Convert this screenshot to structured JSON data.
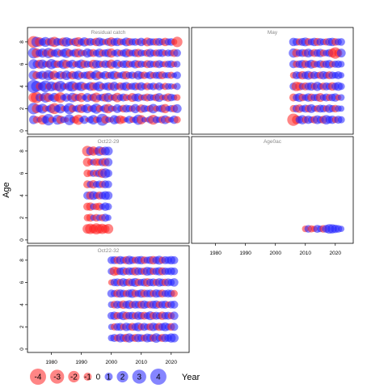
{
  "chart_data": {
    "type": "scatter",
    "subtype": "bubble-residuals",
    "xlabel": "Year",
    "ylabel": "Age",
    "xlim": [
      1972,
      2026
    ],
    "ylim": [
      -0.3,
      9.3
    ],
    "x_ticks": [
      1980,
      1990,
      2000,
      2010,
      2020
    ],
    "y_ticks": [
      0,
      2,
      4,
      6,
      8
    ],
    "colors": {
      "positive": "#2020ff",
      "negative": "#ff2020",
      "alpha": 0.55
    },
    "legend": {
      "placement": "bottom-left",
      "values": [
        -4,
        -3,
        -2,
        -1,
        0,
        1,
        2,
        3,
        4
      ],
      "labels": [
        "-4",
        "-3",
        "-2",
        "-1",
        "0",
        "1",
        "2",
        "3",
        "4"
      ]
    },
    "panels": [
      {
        "title": "Residual catch",
        "years": [
          1974,
          2022
        ],
        "ages": [
          1,
          2,
          3,
          4,
          5,
          6,
          7,
          8
        ],
        "values": [
          [
            1.2,
            -0.8,
            0.5,
            -1.4,
            0.9,
            2.0,
            -0.6,
            0.3,
            1.5,
            -1.1,
            0.7,
            -0.4,
            1.8,
            0.6,
            -0.9,
            -1.6,
            0.4,
            1.1,
            -0.3,
            0.8,
            1.4,
            -0.7,
            0.5,
            2.2,
            -1.0,
            0.6,
            -0.5,
            1.3,
            0.9,
            -1.2,
            -0.8,
            0.4,
            1.0,
            -0.6,
            0.7,
            1.6,
            -1.3,
            0.5,
            -0.4,
            0.9,
            -1.5,
            0.8,
            0.6,
            -0.9,
            1.2,
            -0.7,
            0.5,
            1.1,
            -0.8
          ],
          [
            2.0,
            -1.3,
            0.9,
            1.5,
            -0.7,
            0.6,
            1.2,
            -1.8,
            0.8,
            1.4,
            -0.5,
            0.7,
            1.9,
            -0.9,
            0.6,
            1.0,
            -1.2,
            0.8,
            1.3,
            -0.6,
            0.9,
            1.6,
            -0.8,
            0.5,
            1.1,
            -1.4,
            0.7,
            -0.5,
            1.2,
            0.6,
            -0.9,
            1.0,
            0.8,
            -0.7,
            1.3,
            0.5,
            -1.1,
            0.9,
            0.6,
            -0.8,
            1.4,
            -0.6,
            0.7,
            1.0,
            -1.3,
            0.5,
            0.8,
            -0.9,
            1.2
          ],
          [
            -1.5,
            -2.0,
            1.0,
            -0.8,
            1.6,
            -1.2,
            0.7,
            1.3,
            -0.9,
            -1.7,
            0.6,
            1.1,
            -0.5,
            1.4,
            -1.0,
            0.8,
            -1.3,
            0.5,
            1.2,
            -0.7,
            1.0,
            -1.5,
            0.6,
            0.9,
            -1.1,
            1.3,
            -0.6,
            0.8,
            -1.4,
            0.7,
            1.0,
            -0.8,
            0.5,
            -1.2,
            0.9,
            1.1,
            -0.6,
            0.7,
            -1.0,
            0.8,
            0.6,
            -0.9,
            1.2,
            -0.5,
            0.7,
            -1.1,
            0.9,
            0.6,
            -0.7
          ],
          [
            2.6,
            1.8,
            -0.9,
            1.2,
            2.1,
            -0.7,
            1.5,
            0.9,
            -1.2,
            1.9,
            0.8,
            -0.6,
            1.3,
            1.7,
            -0.9,
            1.0,
            1.4,
            -0.8,
            0.7,
            1.2,
            -1.1,
            0.9,
            1.5,
            -0.6,
            0.8,
            1.1,
            -0.9,
            1.3,
            0.6,
            -1.0,
            0.9,
            1.2,
            -0.7,
            0.8,
            1.0,
            -0.8,
            1.1,
            0.6,
            -0.9,
            0.7,
            0.9,
            -0.6,
            1.0,
            0.5,
            -0.8,
            0.7,
            0.6,
            -0.5,
            0.8
          ],
          [
            1.4,
            -1.0,
            0.8,
            1.2,
            -0.7,
            1.6,
            0.9,
            -1.3,
            0.6,
            1.1,
            -0.8,
            1.4,
            0.7,
            -1.1,
            0.9,
            1.3,
            -0.6,
            0.8,
            1.0,
            -1.2,
            0.7,
            1.5,
            -0.9,
            0.6,
            1.1,
            -0.7,
            0.9,
            1.2,
            -0.8,
            0.6,
            1.0,
            -1.1,
            0.7,
            0.9,
            -0.6,
            1.2,
            0.8,
            -0.9,
            0.6,
            1.0,
            -0.7,
            0.8,
            0.9,
            -1.0,
            0.6,
            0.7,
            -0.8,
            0.5,
            0.9
          ],
          [
            1.5,
            0.9,
            -1.2,
            1.3,
            0.7,
            -0.8,
            1.6,
            1.0,
            -0.9,
            0.8,
            1.4,
            -1.1,
            0.7,
            1.2,
            -0.6,
            0.9,
            1.3,
            -1.0,
            0.8,
            0.6,
            -1.2,
            1.1,
            0.9,
            -0.7,
            1.0,
            0.8,
            -1.3,
            0.7,
            1.2,
            -0.6,
            0.9,
            1.0,
            -0.8,
            0.7,
            1.1,
            -0.9,
            0.8,
            0.6,
            -1.0,
            0.9,
            0.7,
            -0.8,
            1.0,
            0.6,
            -0.7,
            0.8,
            0.9,
            -0.6,
            0.7
          ],
          [
            1.8,
            -1.4,
            0.9,
            1.3,
            -0.8,
            1.6,
            -1.1,
            0.8,
            1.2,
            -0.7,
            1.0,
            1.5,
            -0.9,
            0.7,
            1.1,
            -1.2,
            0.8,
            -0.6,
            1.3,
            0.9,
            -1.0,
            0.7,
            1.2,
            -0.8,
            0.9,
            1.1,
            -1.3,
            0.6,
            1.0,
            -0.7,
            0.8,
            1.2,
            -0.9,
            0.7,
            1.0,
            -1.1,
            0.8,
            0.6,
            -0.9,
            1.1,
            0.7,
            -0.8,
            0.9,
            1.0,
            -0.6,
            0.8,
            0.7,
            -1.0,
            0.9
          ],
          [
            -2.1,
            1.6,
            -1.3,
            0.9,
            1.5,
            -0.8,
            1.2,
            -1.6,
            1.0,
            0.8,
            -1.2,
            1.4,
            0.9,
            -0.7,
            1.1,
            -1.4,
            0.8,
            1.3,
            -0.9,
            1.0,
            0.7,
            -1.1,
            1.2,
            0.8,
            -0.6,
            1.0,
            -1.3,
            0.9,
            1.1,
            -0.8,
            0.7,
            1.2,
            -1.0,
            0.8,
            0.9,
            -0.7,
            1.1,
            0.6,
            -1.2,
            0.9,
            0.8,
            -0.9,
            1.0,
            0.7,
            -1.1,
            0.8,
            0.9,
            -0.6,
            -1.7
          ]
        ]
      },
      {
        "title": "May",
        "years": [
          2006,
          2022
        ],
        "ages": [
          1,
          2,
          3,
          4,
          5,
          6,
          7,
          8
        ],
        "values": [
          [
            -2.3,
            -1.2,
            0.9,
            1.3,
            -0.8,
            1.1,
            0.7,
            -0.9,
            1.2,
            0.8,
            -1.0,
            1.4,
            0.9,
            1.1,
            -0.7,
            1.0,
            0.8
          ],
          [
            -0.8,
            0.9,
            -1.1,
            0.7,
            1.0,
            -0.9,
            1.2,
            0.6,
            -0.8,
            1.0,
            0.9,
            -0.7,
            1.1,
            0.8,
            -0.9,
            0.7,
            0.6
          ],
          [
            -1.0,
            0.8,
            1.2,
            -0.9,
            0.7,
            1.1,
            -1.0,
            0.8,
            0.9,
            -1.2,
            0.7,
            1.0,
            -0.8,
            0.9,
            1.1,
            -0.6,
            0.7
          ],
          [
            0.9,
            -1.4,
            -1.1,
            0.8,
            -1.0,
            0.9,
            1.1,
            -0.8,
            1.3,
            0.7,
            -0.9,
            1.0,
            0.8,
            -1.1,
            0.9,
            1.2,
            0.8
          ],
          [
            -0.7,
            1.0,
            0.8,
            -1.1,
            0.9,
            1.2,
            -0.8,
            1.0,
            0.7,
            -0.9,
            1.1,
            0.8,
            -1.0,
            0.9,
            0.7,
            1.0,
            0.6
          ],
          [
            1.0,
            -0.8,
            0.9,
            1.1,
            -1.0,
            0.8,
            1.2,
            -0.9,
            0.7,
            1.0,
            -0.8,
            0.9,
            1.1,
            -0.7,
            0.8,
            0.9,
            0.7
          ],
          [
            1.3,
            -1.1,
            0.8,
            1.0,
            -0.9,
            1.2,
            0.7,
            -1.0,
            0.9,
            1.1,
            -0.8,
            0.7,
            1.0,
            -1.2,
            -2.0,
            -1.0,
            1.2
          ],
          [
            1.1,
            0.9,
            -0.8,
            1.0,
            1.2,
            -0.9,
            0.8,
            1.1,
            -1.0,
            0.9,
            0.7,
            -0.8,
            1.0,
            1.1,
            -0.9,
            0.8,
            0.9
          ]
        ]
      },
      {
        "title": "Oct22-29",
        "years": [
          1992,
          1999
        ],
        "ages": [
          1,
          2,
          3,
          4,
          5,
          6,
          7,
          8
        ],
        "values": [
          [
            -1.4,
            -1.7,
            -1.2,
            -1.9,
            -1.3,
            -1.6,
            -1.1,
            -1.5
          ],
          [
            -0.8,
            -1.0,
            0.6,
            -0.9,
            0.7,
            -0.8,
            1.0,
            0.6
          ],
          [
            -1.0,
            -1.1,
            0.7,
            -0.8,
            -1.0,
            0.6,
            1.1,
            0.8
          ],
          [
            1.0,
            -1.1,
            1.2,
            0.8,
            -1.0,
            0.9,
            1.2,
            1.1
          ],
          [
            -1.0,
            0.8,
            -1.1,
            0.7,
            0.9,
            -0.8,
            1.0,
            0.9
          ],
          [
            -0.9,
            -0.7,
            0.8,
            -0.8,
            1.0,
            -1.3,
            1.5,
            1.0
          ],
          [
            -1.2,
            -0.6,
            0.7,
            -0.9,
            -0.8,
            1.0,
            -1.1,
            1.1
          ],
          [
            -1.7,
            1.1,
            -1.3,
            -0.8,
            1.4,
            -1.0,
            1.2,
            1.2
          ]
        ]
      },
      {
        "title": "Age0ac",
        "years": [
          2010,
          2022
        ],
        "ages": [
          1
        ],
        "values": [
          [
            -0.7,
            0.9,
            -0.8,
            -0.6,
            1.0,
            0.7,
            -0.9,
            1.0,
            1.4,
            1.3,
            1.1,
            0.9,
            0.6
          ]
        ]
      },
      {
        "title": "Oct22-32",
        "years": [
          2000,
          2021
        ],
        "ages": [
          1,
          2,
          3,
          4,
          5,
          6,
          7,
          8
        ],
        "values": [
          [
            0.7,
            1.0,
            -0.8,
            1.2,
            0.9,
            -1.1,
            1.3,
            0.8,
            -1.0,
            1.1,
            0.9,
            -0.8,
            1.2,
            1.0,
            -0.9,
            1.4,
            0.8,
            -1.0,
            1.1,
            0.9,
            1.3,
            1.2
          ],
          [
            0.6,
            -0.8,
            0.9,
            1.0,
            -0.7,
            1.1,
            0.8,
            -1.0,
            0.9,
            1.2,
            -0.8,
            1.0,
            0.7,
            -0.9,
            1.1,
            0.8,
            -1.0,
            0.9,
            1.2,
            0.8,
            -0.9,
            1.0
          ],
          [
            0.9,
            1.1,
            -0.9,
            0.8,
            1.2,
            -1.0,
            0.9,
            1.0,
            -0.8,
            1.1,
            0.9,
            -1.0,
            0.8,
            1.2,
            -0.9,
            1.0,
            0.8,
            -1.1,
            0.9,
            1.0,
            -0.8,
            1.1
          ],
          [
            0.7,
            -0.9,
            1.0,
            0.8,
            -1.1,
            0.9,
            1.2,
            -0.8,
            1.0,
            0.9,
            -1.0,
            1.1,
            0.8,
            -0.9,
            1.0,
            1.1,
            -0.8,
            0.9,
            1.0,
            -0.7,
            0.9,
            1.0
          ],
          [
            1.0,
            0.8,
            -1.0,
            1.1,
            0.9,
            -0.8,
            1.0,
            1.2,
            -0.9,
            0.8,
            1.1,
            -1.0,
            0.9,
            1.0,
            -0.8,
            1.1,
            0.9,
            -1.0,
            0.8,
            1.0,
            0.9,
            -0.8
          ],
          [
            -0.6,
            0.9,
            1.0,
            -0.8,
            1.1,
            0.8,
            -1.0,
            0.9,
            1.2,
            -0.9,
            0.8,
            1.0,
            -1.1,
            0.9,
            1.0,
            -0.8,
            1.1,
            0.9,
            -0.9,
            1.0,
            0.8,
            1.1
          ],
          [
            0.8,
            -1.3,
            -1.0,
            0.9,
            1.1,
            -0.8,
            1.0,
            0.9,
            -1.1,
            1.0,
            0.8,
            -0.9,
            1.2,
            1.0,
            -0.8,
            0.9,
            1.1,
            -1.0,
            0.9,
            0.8,
            1.0,
            0.9
          ],
          [
            0.9,
            1.0,
            -0.9,
            1.1,
            0.8,
            -1.0,
            1.2,
            0.9,
            -0.8,
            1.0,
            1.1,
            -0.9,
            0.8,
            1.0,
            -1.1,
            0.9,
            1.2,
            -0.8,
            1.0,
            0.9,
            1.1,
            1.0
          ]
        ]
      }
    ]
  }
}
